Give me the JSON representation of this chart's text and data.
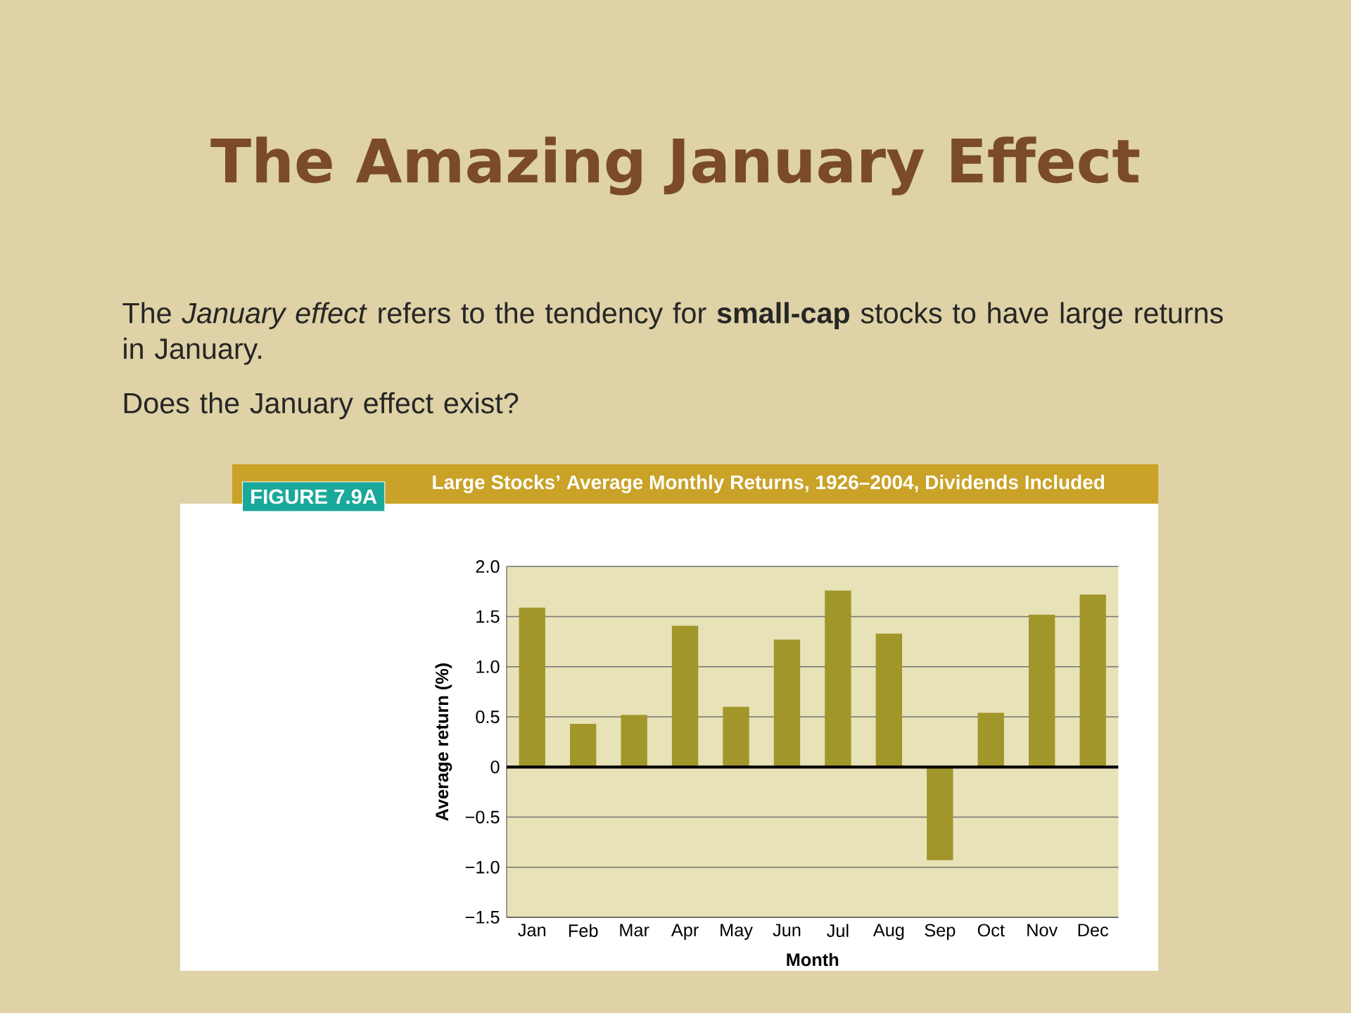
{
  "chart_data": {
    "type": "bar",
    "title": "The Amazing January Effect",
    "subtitle": "Large Stocks’ Average Monthly Returns, 1926–2004, Dividends Included",
    "annotations": [
      "FIGURE 7.9A",
      "The *January effect* refers to the tendency for **small-cap** stocks to have large returns in January.",
      "Does the January effect exist?"
    ],
    "xlabel": "Month",
    "ylabel": "Average return (%)",
    "categories": [
      "Jan",
      "Feb",
      "Mar",
      "Apr",
      "May",
      "Jun",
      "Jul",
      "Aug",
      "Sep",
      "Oct",
      "Nov",
      "Dec"
    ],
    "values": [
      1.59,
      0.43,
      0.52,
      1.41,
      0.6,
      1.27,
      1.76,
      1.33,
      -0.93,
      0.54,
      1.52,
      1.72
    ],
    "color": "#a0962a",
    "ylim": [
      -1.5,
      2.0
    ],
    "yticks": [
      {
        "value": -1.5,
        "label": "−1.5"
      },
      {
        "value": -1.0,
        "label": "−1.0"
      },
      {
        "value": -0.5,
        "label": "−0.5"
      },
      0,
      {
        "value": 0.5,
        "label": "0.5"
      },
      {
        "value": 1.0,
        "label": "1.0"
      },
      {
        "value": 1.5,
        "label": "1.5"
      },
      {
        "value": 2.0,
        "label": "2.0"
      }
    ],
    "grid": "y",
    "ref_lines": [
      {
        "axis": "y",
        "value": 0,
        "color": "#000000"
      }
    ]
  }
}
